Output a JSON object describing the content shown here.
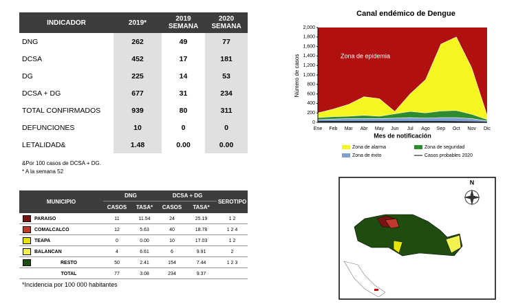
{
  "indicators": {
    "header": [
      "INDICADOR",
      "2019*",
      "2019\nSEMANA",
      "2020\nSEMANA"
    ],
    "rows": [
      [
        "DNG",
        "262",
        "49",
        "77"
      ],
      [
        "DCSA",
        "452",
        "17",
        "181"
      ],
      [
        "DG",
        "225",
        "14",
        "53"
      ],
      [
        "DCSA + DG",
        "677",
        "31",
        "234"
      ],
      [
        "TOTAL CONFIRMADOS",
        "939",
        "80",
        "311"
      ],
      [
        "DEFUNCIONES",
        "10",
        "0",
        "0"
      ],
      [
        "LETALIDAD&",
        "1.48",
        "0.00",
        "0.00"
      ]
    ]
  },
  "notes": [
    "&Por 100 casos de DCSA + DG.",
    "* A la semana 52"
  ],
  "municipios": {
    "header": {
      "municipio": "MUNICIPIO",
      "dng": "DNG",
      "dcsa": "DCSA + DG",
      "serotipo": "SEROTIPO",
      "sub": [
        "CASOS",
        "TASA*",
        "CASOS",
        "TASA*"
      ]
    },
    "rows": [
      {
        "name": "PARAISO",
        "color": "#7a1414",
        "cells": [
          "11",
          "11.54",
          "24",
          "25.19",
          "1  2"
        ]
      },
      {
        "name": "COMALCALCO",
        "color": "#c0392b",
        "cells": [
          "12",
          "5.63",
          "40",
          "18.78",
          "1  2  4"
        ]
      },
      {
        "name": "TEAPA",
        "color": "#e5e500",
        "cells": [
          "0",
          "0.00",
          "10",
          "17.03",
          "1  2"
        ]
      },
      {
        "name": "BALANCAN",
        "color": "#f2f250",
        "cells": [
          "4",
          "6.61",
          "6",
          "9.91",
          "2"
        ]
      },
      {
        "name": "RESTO",
        "color": "#1f4d0f",
        "cells": [
          "50",
          "2.41",
          "154",
          "7.44",
          "1  2  3"
        ]
      },
      {
        "name": "TOTAL",
        "cells": [
          "77",
          "3.08",
          "234",
          "9.37",
          ""
        ]
      }
    ],
    "footnote": "*Incidencia por 100 000 habitantes"
  },
  "map": {
    "compass": "N"
  },
  "chart_data": {
    "type": "area",
    "title": "Canal endémico de Dengue",
    "x_label": "Mes de notificación",
    "y_label": "Número de casos",
    "annotation": "Zona de epidemia",
    "background_color": "#b01010",
    "categories": [
      "Ene",
      "Feb",
      "Mar",
      "Abr",
      "May",
      "Jun",
      "Jul",
      "Ago",
      "Sep",
      "Oct",
      "Nov",
      "Dic"
    ],
    "ylim": [
      0,
      2000
    ],
    "yticks": [
      0,
      200,
      400,
      600,
      800,
      {
        "value": 1000,
        "label": "1,000"
      },
      {
        "value": 1200,
        "label": "1,200"
      },
      {
        "value": 1400,
        "label": "1,400"
      },
      {
        "value": 1600,
        "label": "1,600"
      },
      {
        "value": 1800,
        "label": "1,800"
      },
      {
        "value": 2000,
        "label": "2,000"
      }
    ],
    "series": [
      {
        "name": "Zona de alarma",
        "color": "#f5f520",
        "values": [
          200,
          280,
          380,
          540,
          500,
          230,
          600,
          900,
          1650,
          1800,
          1150,
          150
        ]
      },
      {
        "name": "Zona de seguridad",
        "color": "#2e8b2e",
        "values": [
          100,
          120,
          130,
          150,
          130,
          180,
          230,
          200,
          240,
          250,
          170,
          60
        ]
      },
      {
        "name": "Zona de éxito",
        "color": "#7f9fd0",
        "values": [
          60,
          70,
          80,
          80,
          80,
          90,
          100,
          90,
          100,
          100,
          80,
          30
        ]
      },
      {
        "name": "Casos probables 2020",
        "color": "#000000",
        "kind": "line",
        "values": [
          20,
          20,
          20,
          20,
          20,
          20,
          20,
          20,
          20,
          15,
          10,
          5
        ]
      }
    ]
  }
}
